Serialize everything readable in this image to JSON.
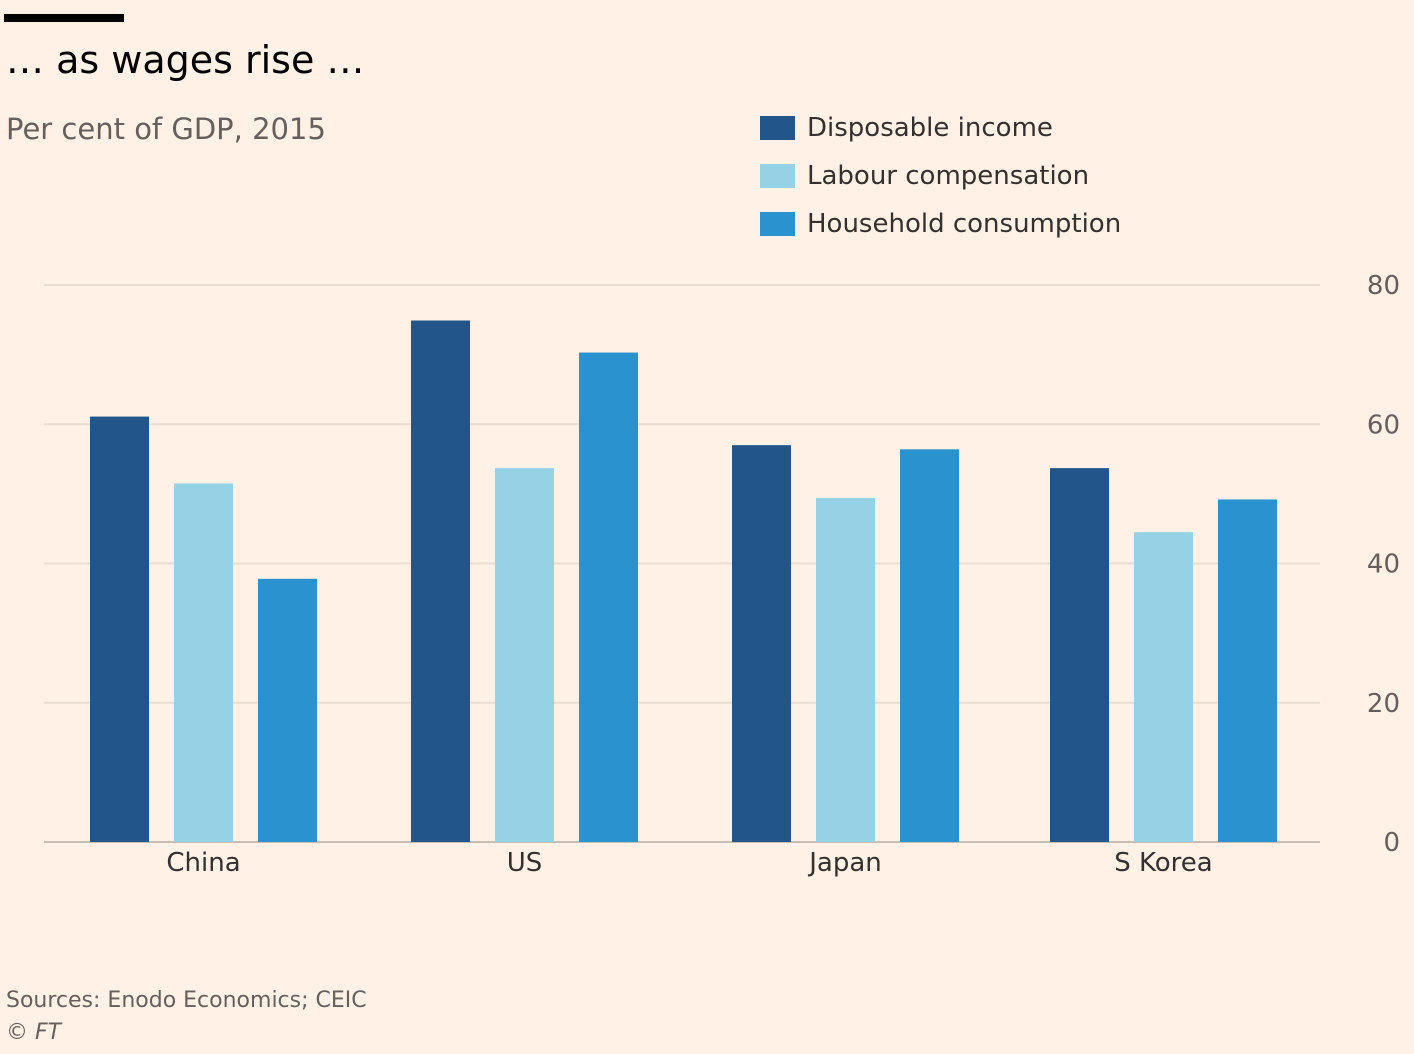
{
  "header": {
    "title": "… as wages rise …",
    "subtitle": "Per cent of GDP, 2015"
  },
  "legend": [
    {
      "label": "Disposable income",
      "color": "#22558a"
    },
    {
      "label": "Labour compensation",
      "color": "#96d2e6"
    },
    {
      "label": "Household consumption",
      "color": "#2a92cf"
    }
  ],
  "footer": {
    "source": "Sources: Enodo Economics; CEIC",
    "copyright": "© FT"
  },
  "chart_data": {
    "type": "bar",
    "categories": [
      "China",
      "US",
      "Japan",
      "S Korea"
    ],
    "series": [
      {
        "name": "Disposable income",
        "values": [
          61.1,
          74.9,
          57,
          53.7
        ],
        "color": "#22558a"
      },
      {
        "name": "Labour compensation",
        "values": [
          51.5,
          53.7,
          49.4,
          44.5
        ],
        "color": "#96d2e6"
      },
      {
        "name": "Household consumption",
        "values": [
          37.8,
          70.3,
          56.4,
          49.2
        ],
        "color": "#2a92cf"
      }
    ],
    "ylim": [
      0,
      80
    ],
    "yticks": [
      0,
      20,
      40,
      60,
      80
    ],
    "ytick_labels": [
      "0",
      "20",
      "40",
      "60",
      "80"
    ],
    "y_axis_side": "right",
    "grid": true,
    "legend_position": "top-right"
  }
}
